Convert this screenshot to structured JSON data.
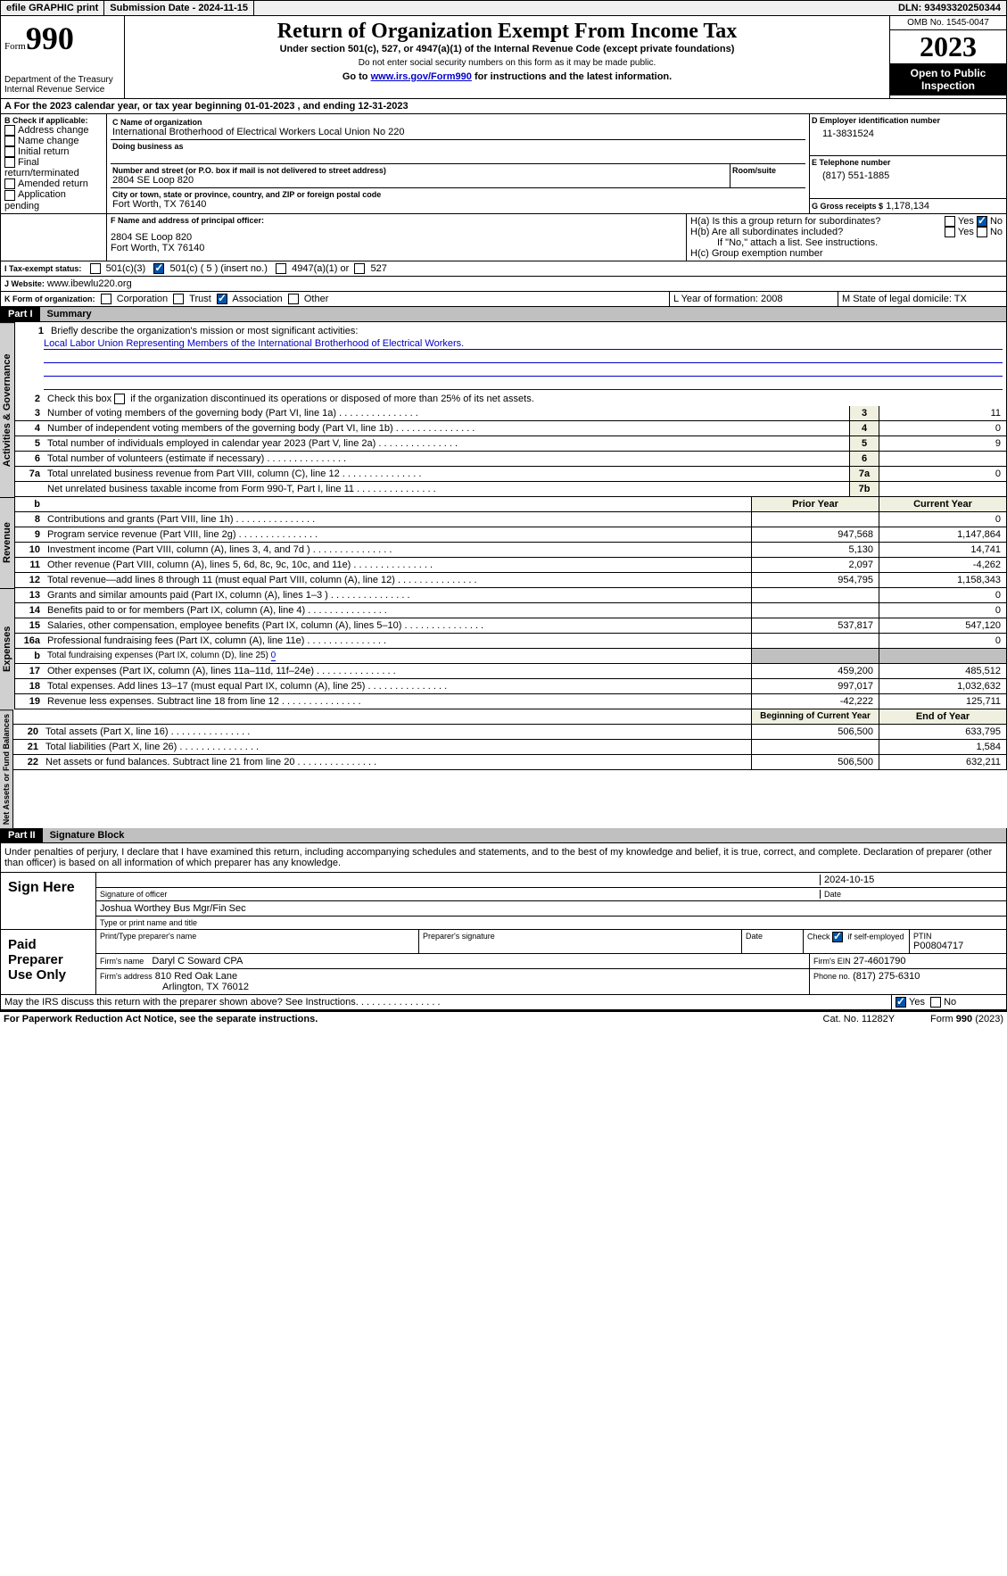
{
  "topbar": {
    "efile": "efile GRAPHIC print",
    "submission_label": "Submission Date - 2024-11-15",
    "dln_label": "DLN: 93493320250344"
  },
  "header": {
    "form_label": "Form",
    "form_num": "990",
    "dept": "Department of the Treasury\nInternal Revenue Service",
    "title": "Return of Organization Exempt From Income Tax",
    "sub1": "Under section 501(c), 527, or 4947(a)(1) of the Internal Revenue Code (except private foundations)",
    "sub2": "Do not enter social security numbers on this form as it may be made public.",
    "sub3_pre": "Go to ",
    "sub3_link": "www.irs.gov/Form990",
    "sub3_post": " for instructions and the latest information.",
    "omb": "OMB No. 1545-0047",
    "year": "2023",
    "inspect": "Open to Public Inspection"
  },
  "A": {
    "label": "A For the 2023 calendar year, or tax year beginning 01-01-2023    , and ending 12-31-2023"
  },
  "B": {
    "label": "B Check if applicable:",
    "opts": [
      "Address change",
      "Name change",
      "Initial return",
      "Final return/terminated",
      "Amended return",
      "Application pending"
    ]
  },
  "C": {
    "name_label": "C Name of organization",
    "name": "International Brotherhood of Electrical Workers Local Union No 220",
    "dba_label": "Doing business as",
    "street_label": "Number and street (or P.O. box if mail is not delivered to street address)",
    "room_label": "Room/suite",
    "street": "2804 SE Loop 820",
    "city_label": "City or town, state or province, country, and ZIP or foreign postal code",
    "city": "Fort Worth, TX  76140"
  },
  "D": {
    "label": "D Employer identification number",
    "val": "11-3831524"
  },
  "E": {
    "label": "E Telephone number",
    "val": "(817) 551-1885"
  },
  "G": {
    "label": "G Gross receipts $",
    "val": "1,178,134"
  },
  "F": {
    "label": "F  Name and address of principal officer:",
    "addr1": "2804 SE Loop 820",
    "addr2": "Fort Worth, TX  76140"
  },
  "H": {
    "a": "H(a)  Is this a group return for subordinates?",
    "b": "H(b)  Are all subordinates included?",
    "b_note": "If \"No,\" attach a list. See instructions.",
    "c": "H(c)  Group exemption number"
  },
  "I": {
    "label": "I   Tax-exempt status:",
    "o1": "501(c)(3)",
    "o2": "501(c) ( 5 ) (insert no.)",
    "o3": "4947(a)(1) or",
    "o4": "527"
  },
  "J": {
    "label": "J   Website:",
    "val": " www.ibewlu220.org"
  },
  "K": {
    "label": "K Form of organization:",
    "opts": [
      "Corporation",
      "Trust",
      "Association",
      "Other"
    ]
  },
  "L": {
    "label": "L Year of formation: 2008"
  },
  "M": {
    "label": "M State of legal domicile: TX"
  },
  "part1": {
    "hdr": "Part I",
    "title": "Summary",
    "l1_label": "Briefly describe the organization's mission or most significant activities:",
    "l1_val": "Local Labor Union Representing Members of the International Brotherhood of Electrical Workers.",
    "l2": "Check this box      if the organization discontinued its operations or disposed of more than 25% of its net assets.",
    "lines_gov": [
      {
        "n": "3",
        "t": "Number of voting members of the governing body (Part VI, line 1a)",
        "b": "3",
        "v": "11"
      },
      {
        "n": "4",
        "t": "Number of independent voting members of the governing body (Part VI, line 1b)",
        "b": "4",
        "v": "0"
      },
      {
        "n": "5",
        "t": "Total number of individuals employed in calendar year 2023 (Part V, line 2a)",
        "b": "5",
        "v": "9"
      },
      {
        "n": "6",
        "t": "Total number of volunteers (estimate if necessary)",
        "b": "6",
        "v": ""
      },
      {
        "n": "7a",
        "t": "Total unrelated business revenue from Part VIII, column (C), line 12",
        "b": "7a",
        "v": "0"
      },
      {
        "n": "",
        "t": "Net unrelated business taxable income from Form 990-T, Part I, line 11",
        "b": "7b",
        "v": ""
      }
    ],
    "col_prior": "Prior Year",
    "col_curr": "Current Year",
    "lines_rev": [
      {
        "n": "8",
        "t": "Contributions and grants (Part VIII, line 1h)",
        "p": "",
        "c": "0"
      },
      {
        "n": "9",
        "t": "Program service revenue (Part VIII, line 2g)",
        "p": "947,568",
        "c": "1,147,864"
      },
      {
        "n": "10",
        "t": "Investment income (Part VIII, column (A), lines 3, 4, and 7d )",
        "p": "5,130",
        "c": "14,741"
      },
      {
        "n": "11",
        "t": "Other revenue (Part VIII, column (A), lines 5, 6d, 8c, 9c, 10c, and 11e)",
        "p": "2,097",
        "c": "-4,262"
      },
      {
        "n": "12",
        "t": "Total revenue—add lines 8 through 11 (must equal Part VIII, column (A), line 12)",
        "p": "954,795",
        "c": "1,158,343"
      }
    ],
    "lines_exp": [
      {
        "n": "13",
        "t": "Grants and similar amounts paid (Part IX, column (A), lines 1–3 )",
        "p": "",
        "c": "0"
      },
      {
        "n": "14",
        "t": "Benefits paid to or for members (Part IX, column (A), line 4)",
        "p": "",
        "c": "0"
      },
      {
        "n": "15",
        "t": "Salaries, other compensation, employee benefits (Part IX, column (A), lines 5–10)",
        "p": "537,817",
        "c": "547,120"
      },
      {
        "n": "16a",
        "t": "Professional fundraising fees (Part IX, column (A), line 11e)",
        "p": "",
        "c": "0"
      }
    ],
    "l16b_pre": "Total fundraising expenses (Part IX, column (D), line 25)",
    "l16b_val": "0",
    "lines_exp2": [
      {
        "n": "17",
        "t": "Other expenses (Part IX, column (A), lines 11a–11d, 11f–24e)",
        "p": "459,200",
        "c": "485,512"
      },
      {
        "n": "18",
        "t": "Total expenses. Add lines 13–17 (must equal Part IX, column (A), line 25)",
        "p": "997,017",
        "c": "1,032,632"
      },
      {
        "n": "19",
        "t": "Revenue less expenses. Subtract line 18 from line 12",
        "p": "-42,222",
        "c": "125,711"
      }
    ],
    "col_begin": "Beginning of Current Year",
    "col_end": "End of Year",
    "lines_net": [
      {
        "n": "20",
        "t": "Total assets (Part X, line 16)",
        "p": "506,500",
        "c": "633,795"
      },
      {
        "n": "21",
        "t": "Total liabilities (Part X, line 26)",
        "p": "",
        "c": "1,584"
      },
      {
        "n": "22",
        "t": "Net assets or fund balances. Subtract line 21 from line 20",
        "p": "506,500",
        "c": "632,211"
      }
    ],
    "tab_gov": "Activities & Governance",
    "tab_rev": "Revenue",
    "tab_exp": "Expenses",
    "tab_net": "Net Assets or Fund Balances"
  },
  "part2": {
    "hdr": "Part II",
    "title": "Signature Block",
    "decl": "Under penalties of perjury, I declare that I have examined this return, including accompanying schedules and statements, and to the best of my knowledge and belief, it is true, correct, and complete. Declaration of preparer (other than officer) is based on all information of which preparer has any knowledge.",
    "sign_here": "Sign Here",
    "sig_officer": "Signature of officer",
    "date": "Date",
    "officer_date": "2024-10-15",
    "officer_name": "Joshua Worthey  Bus Mgr/Fin Sec",
    "type_name": "Type or print name and title",
    "paid": "Paid Preparer Use Only",
    "prep_name_lbl": "Print/Type preparer's name",
    "prep_sig_lbl": "Preparer's signature",
    "prep_date_lbl": "Date",
    "self_emp": "Check       if self-employed",
    "ptin_lbl": "PTIN",
    "ptin": "P00804717",
    "firm_name_lbl": "Firm's name",
    "firm_name": "Daryl C Soward CPA",
    "firm_ein_lbl": "Firm's EIN",
    "firm_ein": "27-4601790",
    "firm_addr_lbl": "Firm's address",
    "firm_addr1": "810 Red Oak Lane",
    "firm_addr2": "Arlington, TX  76012",
    "firm_phone_lbl": "Phone no.",
    "firm_phone": "(817) 275-6310",
    "discuss": "May the IRS discuss this return with the preparer shown above? See Instructions.",
    "yes": "Yes",
    "no": "No"
  },
  "footer": {
    "pra": "For Paperwork Reduction Act Notice, see the separate instructions.",
    "cat": "Cat. No. 11282Y",
    "form": "Form 990 (2023)"
  }
}
